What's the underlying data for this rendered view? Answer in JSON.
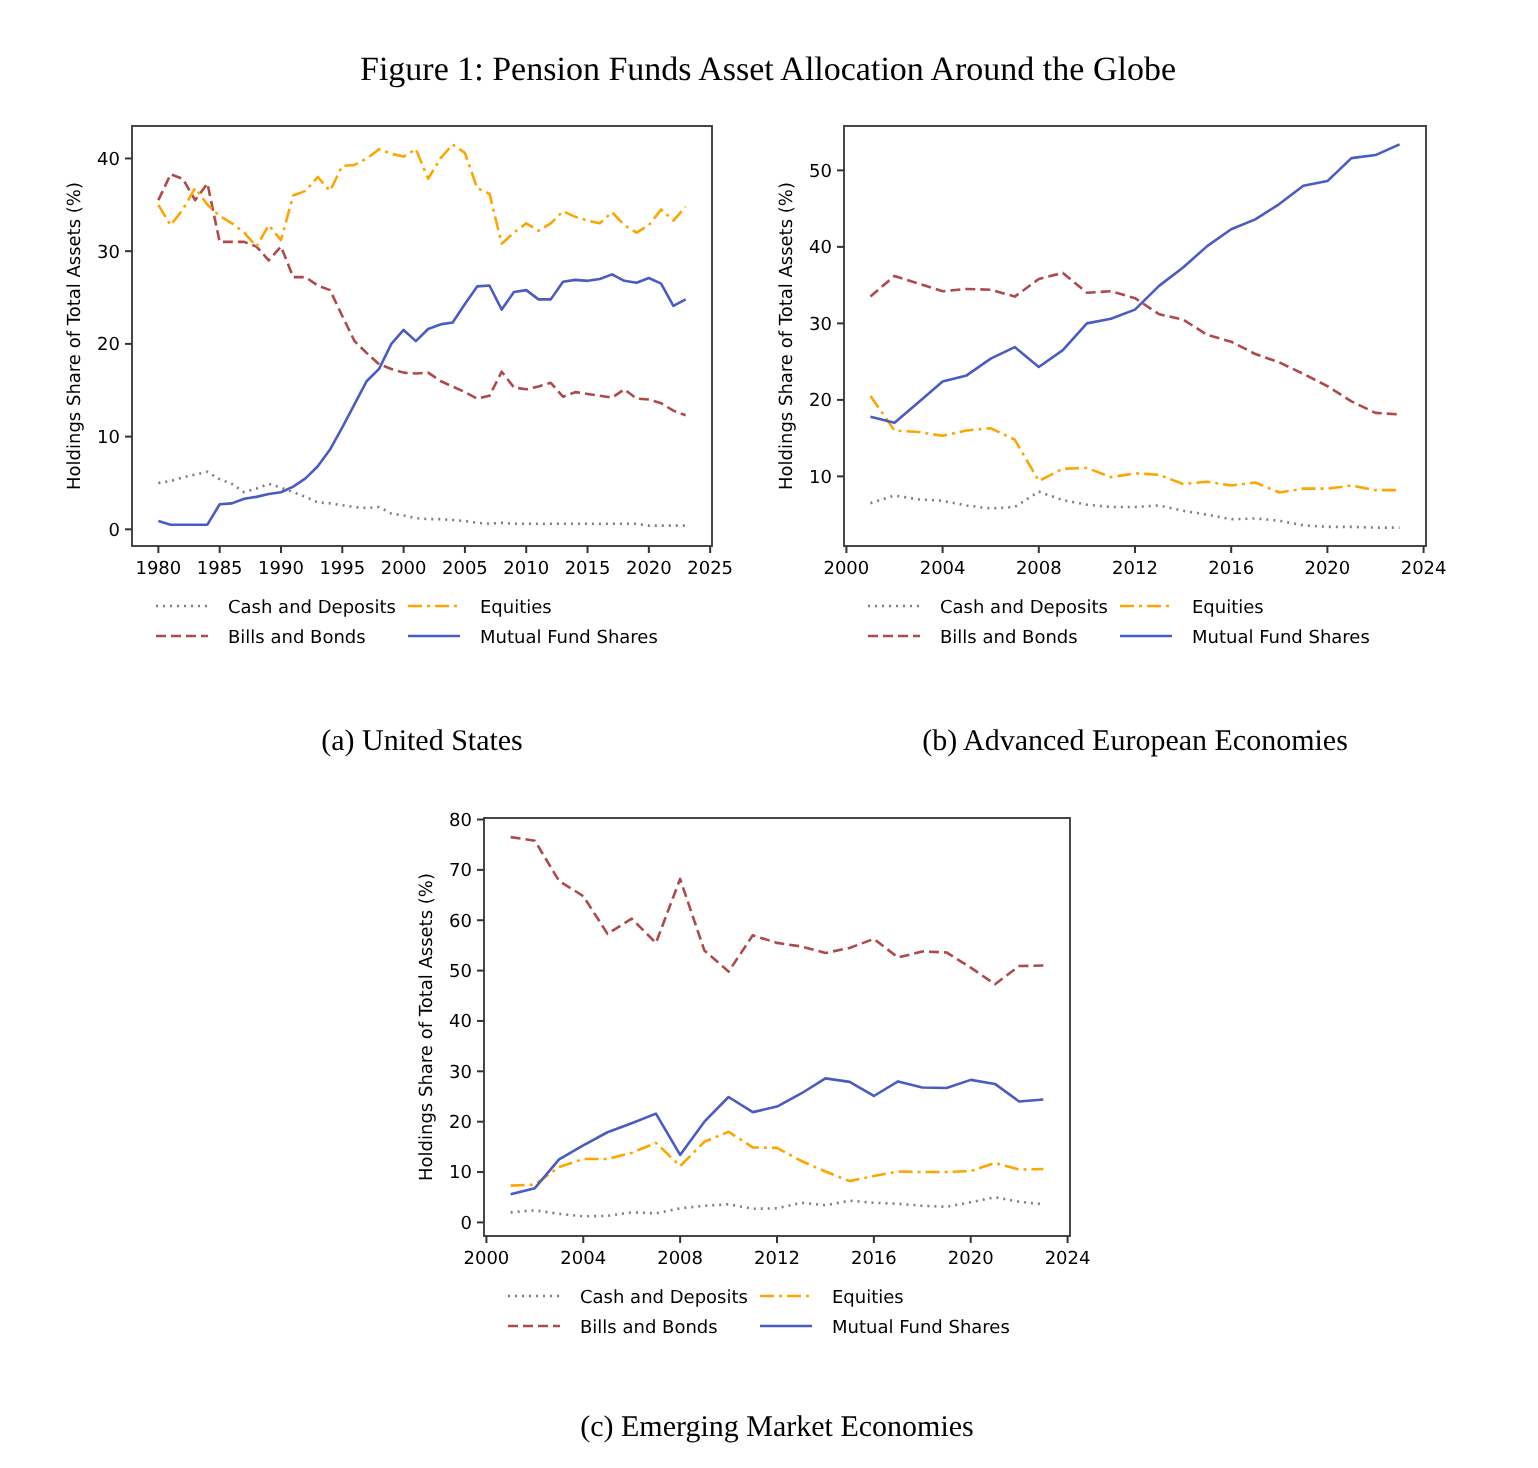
{
  "chart_data": [
    {
      "type": "line",
      "title": "(a) United States",
      "annotations": [
        "Figure 1: Pension Funds Asset Allocation Around the Globe"
      ],
      "ylabel": "Holdings Share of Total Assets (%)",
      "legend": "bottom",
      "xlim": [
        1977.85,
        2025.15
      ],
      "xticks": [
        1980,
        1985,
        1990,
        1995,
        2000,
        2005,
        2010,
        2015,
        2020,
        2025
      ],
      "ylim": [
        -1.8,
        43.5
      ],
      "yticks": [
        0,
        10,
        20,
        30,
        40
      ],
      "x": [
        1980,
        1981,
        1982,
        1983,
        1984,
        1985,
        1986,
        1987,
        1988,
        1989,
        1990,
        1991,
        1992,
        1993,
        1994,
        1995,
        1996,
        1997,
        1998,
        1999,
        2000,
        2001,
        2002,
        2003,
        2004,
        2005,
        2006,
        2007,
        2008,
        2009,
        2010,
        2011,
        2012,
        2013,
        2014,
        2015,
        2016,
        2017,
        2018,
        2019,
        2020,
        2021,
        2022,
        2023
      ],
      "series": [
        {
          "name": "Cash and Deposits",
          "color": "#7f7f7f",
          "line_style": "dotted",
          "values": [
            5,
            5.2,
            5.6,
            5.9,
            6.2,
            5.4,
            4.9,
            4,
            4.4,
            4.9,
            4.5,
            4,
            3.5,
            2.9,
            2.8,
            2.6,
            2.4,
            2.3,
            2.4,
            1.7,
            1.5,
            1.2,
            1.1,
            1.1,
            1,
            0.9,
            0.7,
            0.6,
            0.7,
            0.6,
            0.6,
            0.6,
            0.6,
            0.6,
            0.6,
            0.6,
            0.6,
            0.6,
            0.6,
            0.6,
            0.4,
            0.4,
            0.4,
            0.4
          ]
        },
        {
          "name": "Bills and Bonds",
          "color": "#b04a4a",
          "line_style": "dashed",
          "values": [
            35.5,
            38.3,
            37.8,
            35.5,
            37.3,
            31,
            31,
            31,
            30.5,
            29,
            30.5,
            27.2,
            27.2,
            26.3,
            25.8,
            23,
            20.3,
            19,
            17.8,
            17.3,
            16.9,
            16.8,
            16.9,
            16,
            15.4,
            14.8,
            14.1,
            14.4,
            17,
            15.3,
            15.1,
            15.4,
            15.8,
            14.3,
            14.8,
            14.6,
            14.4,
            14.2,
            15.1,
            14.1,
            14,
            13.6,
            12.8,
            12.3
          ]
        },
        {
          "name": "Equities",
          "color": "#ffa500",
          "line_style": "dashdot",
          "values": [
            35,
            32.8,
            34.5,
            36.8,
            35,
            33.8,
            33,
            32,
            30.5,
            32.8,
            31.2,
            36,
            36.5,
            38,
            36.5,
            39.2,
            39.3,
            40,
            41,
            40.5,
            40.2,
            41,
            37.8,
            40,
            41.5,
            40.6,
            36.8,
            36.2,
            30.8,
            32,
            33,
            32.2,
            33,
            34.3,
            33.7,
            33.3,
            33,
            34.2,
            32.8,
            32,
            32.8,
            34.5,
            33.3,
            34.8
          ]
        },
        {
          "name": "Mutual Fund Shares",
          "color": "#4b5bc4",
          "line_style": "solid",
          "values": [
            0.9,
            0.5,
            0.5,
            0.5,
            0.5,
            2.7,
            2.8,
            3.3,
            3.5,
            3.8,
            4,
            4.6,
            5.5,
            6.8,
            8.6,
            11,
            13.5,
            16,
            17.3,
            20,
            21.5,
            20.3,
            21.6,
            22.1,
            22.3,
            24.3,
            26.2,
            26.3,
            23.7,
            25.6,
            25.8,
            24.8,
            24.8,
            26.7,
            26.9,
            26.8,
            27,
            27.5,
            26.8,
            26.6,
            27.1,
            26.5,
            24.1,
            24.8
          ]
        }
      ]
    },
    {
      "type": "line",
      "title": "(b) Advanced European Economies",
      "ylabel": "Holdings Share of Total Assets (%)",
      "legend": "bottom",
      "xlim": [
        1999.9,
        2024.1
      ],
      "xticks": [
        2000,
        2004,
        2008,
        2012,
        2016,
        2020,
        2024
      ],
      "ylim": [
        0.9,
        55.8
      ],
      "yticks": [
        10,
        20,
        30,
        40,
        50
      ],
      "x": [
        2001,
        2002,
        2003,
        2004,
        2005,
        2006,
        2007,
        2008,
        2009,
        2010,
        2011,
        2012,
        2013,
        2014,
        2015,
        2016,
        2017,
        2018,
        2019,
        2020,
        2021,
        2022,
        2023
      ],
      "series": [
        {
          "name": "Cash and Deposits",
          "color": "#7f7f7f",
          "line_style": "dotted",
          "values": [
            6.5,
            7.5,
            7,
            6.8,
            6.2,
            5.8,
            6,
            8,
            6.9,
            6.3,
            6,
            6,
            6.2,
            5.5,
            5,
            4.4,
            4.5,
            4.2,
            3.6,
            3.4,
            3.4,
            3.3,
            3.3
          ]
        },
        {
          "name": "Bills and Bonds",
          "color": "#b04a4a",
          "line_style": "dashed",
          "values": [
            33.5,
            36.2,
            35.2,
            34.2,
            34.5,
            34.4,
            33.5,
            35.8,
            36.6,
            34,
            34.2,
            33.3,
            31.2,
            30.5,
            28.5,
            27.6,
            26,
            24.9,
            23.4,
            21.8,
            19.8,
            18.3,
            18.1
          ]
        },
        {
          "name": "Equities",
          "color": "#ffa500",
          "line_style": "dashdot",
          "values": [
            20.5,
            16,
            15.8,
            15.3,
            16,
            16.3,
            14.8,
            9.4,
            11,
            11.1,
            9.9,
            10.4,
            10.2,
            9,
            9.3,
            8.8,
            9.2,
            7.9,
            8.4,
            8.4,
            8.8,
            8.2,
            8.2
          ]
        },
        {
          "name": "Mutual Fund Shares",
          "color": "#4b5bc4",
          "line_style": "solid",
          "values": [
            17.8,
            17,
            19.7,
            22.4,
            23.2,
            25.4,
            26.9,
            24.3,
            26.5,
            30,
            30.6,
            31.8,
            34.9,
            37.3,
            40.1,
            42.3,
            43.6,
            45.6,
            48,
            48.6,
            51.6,
            52,
            53.4
          ]
        }
      ]
    },
    {
      "type": "line",
      "title": "(c) Emerging Market Economies",
      "ylabel": "Holdings Share of Total Assets (%)",
      "legend": "bottom",
      "xlim": [
        1999.9,
        2024.1
      ],
      "xticks": [
        2000,
        2004,
        2008,
        2012,
        2016,
        2020,
        2024
      ],
      "ylim": [
        -2.7,
        80.3
      ],
      "yticks": [
        0,
        10,
        20,
        30,
        40,
        50,
        60,
        70,
        80
      ],
      "x": [
        2001,
        2002,
        2003,
        2004,
        2005,
        2006,
        2007,
        2008,
        2009,
        2010,
        2011,
        2012,
        2013,
        2014,
        2015,
        2016,
        2017,
        2018,
        2019,
        2020,
        2021,
        2022,
        2023
      ],
      "series": [
        {
          "name": "Cash and Deposits",
          "color": "#7f7f7f",
          "line_style": "dotted",
          "values": [
            2,
            2.4,
            1.7,
            1.2,
            1.3,
            2,
            1.8,
            2.8,
            3.3,
            3.6,
            2.7,
            2.8,
            3.9,
            3.4,
            4.3,
            3.9,
            3.7,
            3.3,
            3.1,
            4,
            5,
            4.1,
            3.6
          ]
        },
        {
          "name": "Bills and Bonds",
          "color": "#b04a4a",
          "line_style": "dashed",
          "values": [
            76.5,
            75.8,
            67.8,
            64.8,
            57.3,
            60.3,
            55.5,
            68.2,
            54,
            49.8,
            57,
            55.5,
            54.8,
            53.5,
            54.5,
            56.3,
            52.6,
            53.8,
            53.6,
            50.6,
            47.3,
            50.9,
            51
          ]
        },
        {
          "name": "Equities",
          "color": "#ffa500",
          "line_style": "dashdot",
          "values": [
            7.3,
            7.5,
            11,
            12.6,
            12.6,
            13.8,
            15.8,
            11.2,
            16,
            18,
            14.9,
            14.8,
            12.2,
            10.1,
            8.2,
            9.2,
            10.1,
            10,
            10,
            10.2,
            11.8,
            10.5,
            10.6
          ]
        },
        {
          "name": "Mutual Fund Shares",
          "color": "#4b5bc4",
          "line_style": "solid",
          "values": [
            5.6,
            6.8,
            12.5,
            15.3,
            17.9,
            19.7,
            21.6,
            13.4,
            20,
            24.9,
            21.9,
            23,
            25.6,
            28.6,
            27.9,
            25.1,
            28,
            26.8,
            26.7,
            28.3,
            27.5,
            24,
            24.4
          ]
        }
      ]
    }
  ]
}
